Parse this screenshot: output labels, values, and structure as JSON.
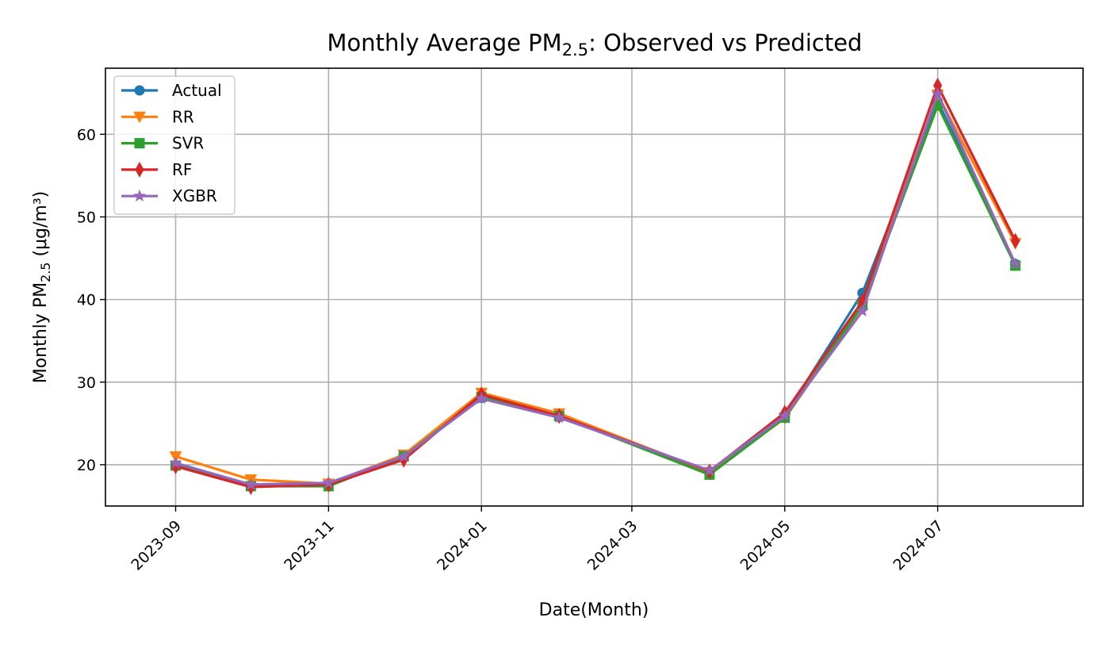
{
  "chart_data": {
    "type": "line",
    "title": {
      "prefix": "Monthly Average PM",
      "subscript": "2.5",
      "suffix": ": Observed vs Predicted"
    },
    "xlabel": "Date(Month)",
    "ylabel": {
      "prefix": "Monthly PM",
      "subscript": "2.5",
      "suffix": " (μg/m³)"
    },
    "x": [
      "2023-09",
      "2023-10",
      "2023-11",
      "2023-12",
      "2024-01",
      "2024-02",
      "2024-04",
      "2024-05",
      "2024-06",
      "2024-07",
      "2024-08"
    ],
    "x_ticks": [
      "2023-09",
      "2023-11",
      "2024-01",
      "2024-03",
      "2024-05",
      "2024-07"
    ],
    "xlim": [
      "2023-08-04",
      "2024-08-28"
    ],
    "ylim": [
      15,
      68
    ],
    "y_ticks": [
      20,
      30,
      40,
      50,
      60
    ],
    "grid": true,
    "legend_position": "top-left",
    "series": [
      {
        "name": "Actual",
        "color": "#1f77b4",
        "marker": "circle",
        "values": [
          19.9,
          17.5,
          17.6,
          20.9,
          28.1,
          25.8,
          19.0,
          25.9,
          40.8,
          64.0,
          44.3
        ]
      },
      {
        "name": "RR",
        "color": "#ff7f0e",
        "marker": "triangle-down",
        "values": [
          21.0,
          18.2,
          17.7,
          21.2,
          28.7,
          26.2,
          19.1,
          25.6,
          39.2,
          64.8,
          46.8
        ]
      },
      {
        "name": "SVR",
        "color": "#2ca02c",
        "marker": "square",
        "values": [
          19.9,
          17.4,
          17.4,
          21.0,
          28.2,
          25.9,
          18.8,
          25.7,
          39.3,
          63.5,
          44.1
        ]
      },
      {
        "name": "RF",
        "color": "#d62728",
        "marker": "diamond",
        "values": [
          19.8,
          17.3,
          17.6,
          20.6,
          28.5,
          25.9,
          19.2,
          26.3,
          39.8,
          65.9,
          47.1
        ]
      },
      {
        "name": "XGBR",
        "color": "#9467bd",
        "marker": "star",
        "values": [
          20.2,
          17.6,
          17.8,
          21.0,
          28.0,
          25.7,
          19.3,
          25.9,
          38.6,
          64.9,
          44.3
        ]
      }
    ]
  }
}
